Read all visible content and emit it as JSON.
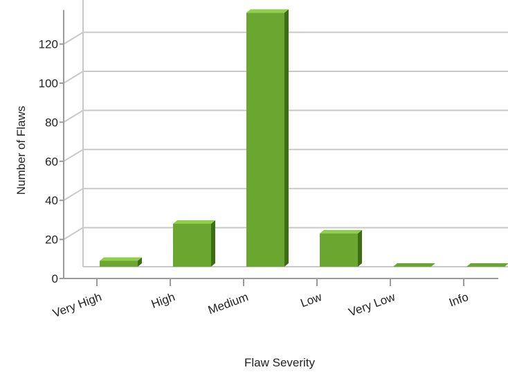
{
  "chart_data": {
    "type": "bar",
    "title": "",
    "xlabel": "Flaw Severity",
    "ylabel": "Number of Flaws",
    "categories": [
      "Very High",
      "High",
      "Medium",
      "Low",
      "Very Low",
      "Info"
    ],
    "values": [
      3,
      22,
      130,
      17,
      0,
      0
    ],
    "ylim": [
      0,
      130
    ],
    "yticks": [
      0,
      20,
      40,
      60,
      80,
      100,
      120
    ],
    "grid": true,
    "bar_style": "3d",
    "colors": {
      "bar_front": "#6aa630",
      "bar_top": "#8fcf4d",
      "bar_side": "#3c6e14",
      "gridline": "#c8c8c8",
      "axis": "#9a9a9a"
    }
  }
}
